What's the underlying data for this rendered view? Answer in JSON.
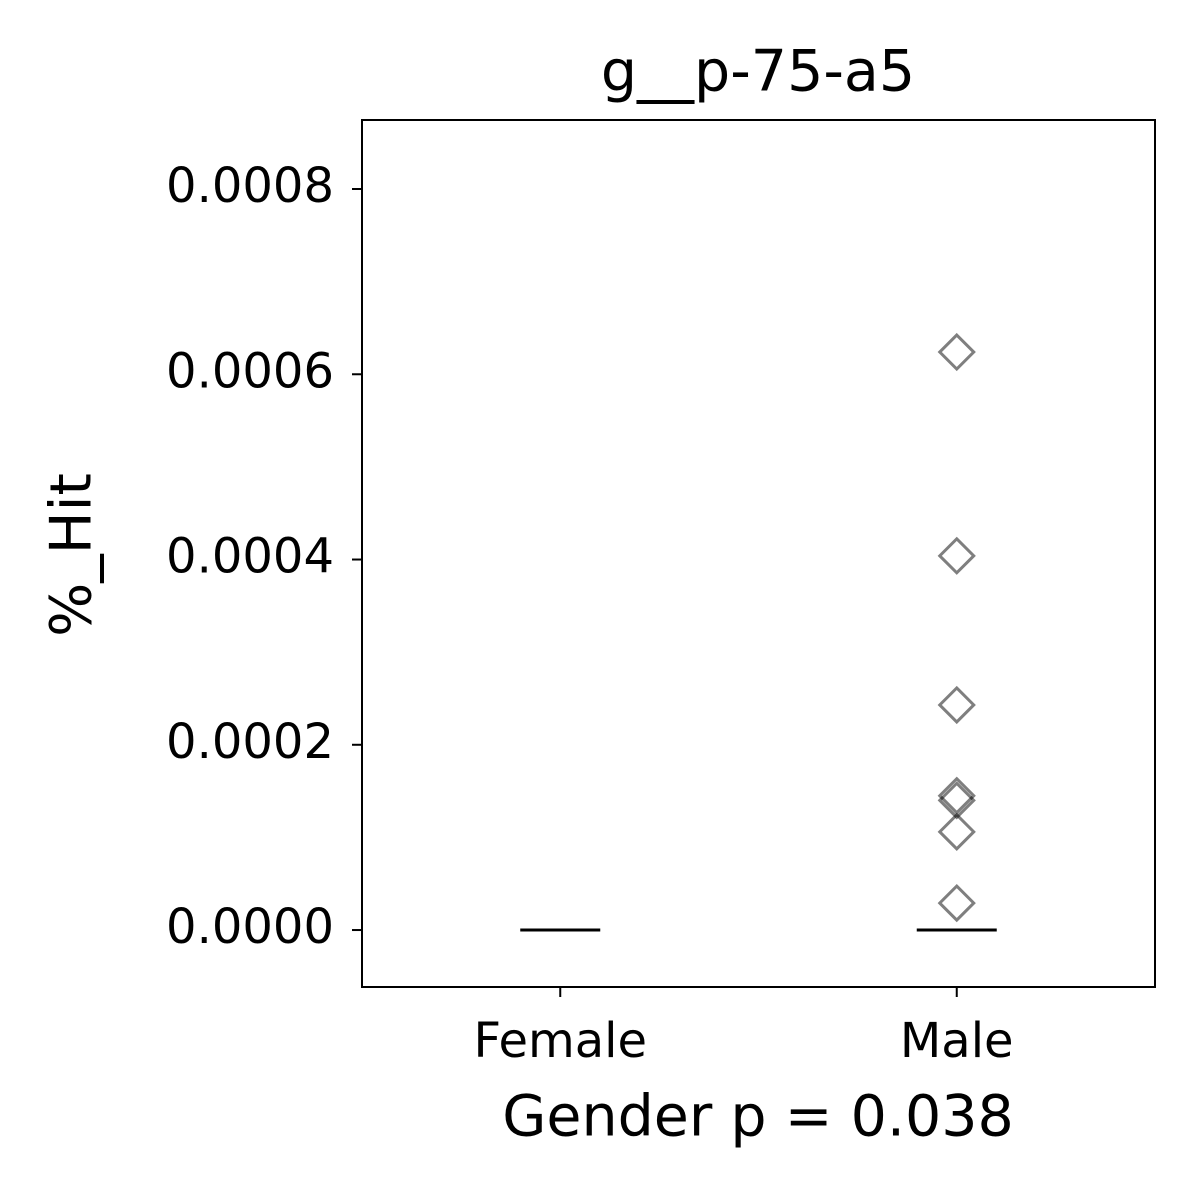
{
  "chart_data": {
    "type": "strip",
    "title": "g__p-75-a5",
    "x_label": "Gender p = 0.038",
    "y_label": "%_Hit",
    "categories": [
      "Female",
      "Male"
    ],
    "points": [
      [],
      [
        0.000624,
        0.000404,
        0.000243,
        0.000145,
        0.00014,
        0.000106,
        2.91e-05
      ]
    ],
    "medians": [
      0,
      0
    ],
    "marker_color": "#000000",
    "median_color": "#000000",
    "ylim": [
      -6.15e-05,
      0.0008745
    ],
    "yticks": [
      {
        "value": 0,
        "label": "0.0000"
      },
      {
        "value": 0.0002,
        "label": "0.0002"
      },
      {
        "value": 0.0004,
        "label": "0.0004"
      },
      {
        "value": 0.0006,
        "label": "0.0006"
      },
      {
        "value": 0.0008,
        "label": "0.0008"
      }
    ]
  }
}
